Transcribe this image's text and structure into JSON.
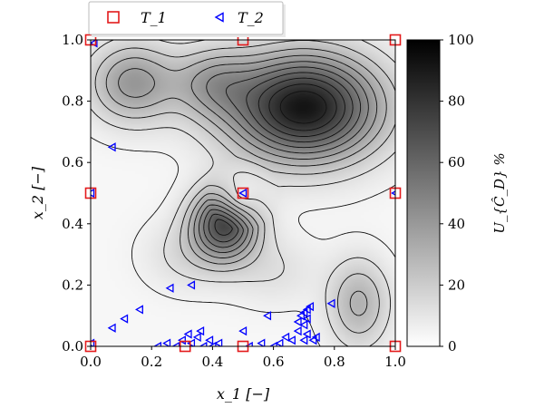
{
  "chart_data": {
    "type": "heatmap",
    "xlabel": "x_1 [−]",
    "ylabel": "x_2 [−]",
    "xlim": [
      0.0,
      1.0
    ],
    "ylim": [
      0.0,
      1.0
    ],
    "x_ticks": [
      "0.0",
      "0.2",
      "0.4",
      "0.6",
      "0.8",
      "1.0"
    ],
    "y_ticks": [
      "0.0",
      "0.2",
      "0.4",
      "0.6",
      "0.8",
      "1.0"
    ],
    "colorbar": {
      "label": "U_{Ĉ_D} %",
      "range": [
        0,
        100
      ],
      "ticks": [
        "0",
        "20",
        "40",
        "60",
        "80",
        "100"
      ],
      "colormap": "gray_r"
    },
    "legend": {
      "placement": "top-left, above plot",
      "entries": [
        {
          "label": "T_1",
          "marker": "square",
          "color": "#e31a1c"
        },
        {
          "label": "T_2",
          "marker": "triangle-left",
          "color": "#0000ff"
        }
      ]
    },
    "peaks": [
      {
        "x": 0.7,
        "y": 0.78,
        "value": 92
      },
      {
        "x": 0.44,
        "y": 0.4,
        "value": 70
      },
      {
        "x": 0.88,
        "y": 0.14,
        "value": 30
      },
      {
        "x": 0.14,
        "y": 0.86,
        "value": 40
      },
      {
        "x": 0.4,
        "y": 0.86,
        "value": 30
      },
      {
        "x": 0.32,
        "y": 0.3,
        "value": 14
      },
      {
        "x": 0.6,
        "y": 0.25,
        "value": 12
      }
    ],
    "series": [
      {
        "name": "T_1",
        "points": [
          [
            0.0,
            0.0
          ],
          [
            0.0,
            0.5
          ],
          [
            0.0,
            1.0
          ],
          [
            0.5,
            0.0
          ],
          [
            0.5,
            0.5
          ],
          [
            0.5,
            1.0
          ],
          [
            1.0,
            0.0
          ],
          [
            1.0,
            0.5
          ],
          [
            1.0,
            1.0
          ],
          [
            0.31,
            0.0
          ]
        ]
      },
      {
        "name": "T_2",
        "points": [
          [
            0.01,
            0.99
          ],
          [
            0.0,
            0.5
          ],
          [
            0.0,
            0.01
          ],
          [
            0.5,
            0.5
          ],
          [
            1.0,
            0.5
          ],
          [
            0.07,
            0.65
          ],
          [
            0.26,
            0.19
          ],
          [
            0.33,
            0.2
          ],
          [
            0.16,
            0.12
          ],
          [
            0.11,
            0.09
          ],
          [
            0.07,
            0.06
          ],
          [
            0.58,
            0.1
          ],
          [
            0.5,
            0.05
          ],
          [
            0.74,
            0.03
          ],
          [
            0.79,
            0.14
          ],
          [
            0.42,
            0.01
          ],
          [
            0.3,
            0.02
          ],
          [
            0.35,
            0.03
          ],
          [
            0.28,
            0.0
          ],
          [
            0.39,
            0.02
          ],
          [
            0.33,
            0.01
          ],
          [
            0.37,
            0.0
          ],
          [
            0.32,
            0.04
          ],
          [
            0.36,
            0.05
          ],
          [
            0.25,
            0.01
          ],
          [
            0.22,
            0.0
          ],
          [
            0.4,
            0.0
          ],
          [
            0.7,
            0.07
          ],
          [
            0.71,
            0.09
          ],
          [
            0.7,
            0.11
          ],
          [
            0.71,
            0.12
          ],
          [
            0.69,
            0.1
          ],
          [
            0.72,
            0.13
          ],
          [
            0.68,
            0.05
          ],
          [
            0.71,
            0.04
          ],
          [
            0.66,
            0.02
          ],
          [
            0.62,
            0.01
          ],
          [
            0.73,
            0.02
          ],
          [
            0.56,
            0.01
          ],
          [
            0.6,
            0.0
          ],
          [
            0.64,
            0.03
          ],
          [
            0.52,
            0.0
          ],
          [
            0.7,
            0.02
          ],
          [
            0.68,
            0.08
          ]
        ]
      }
    ]
  }
}
